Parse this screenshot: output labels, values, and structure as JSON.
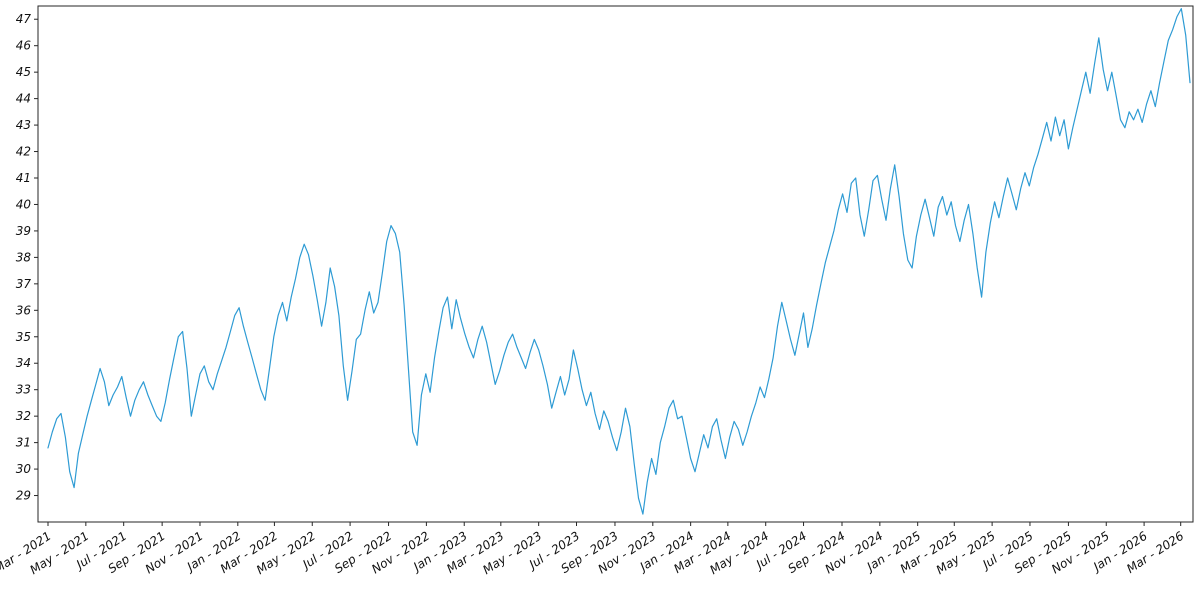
{
  "figure": {
    "background_color": "#ffffff",
    "axis_color": "#262626",
    "label_color": "#111111"
  },
  "chart_data": {
    "type": "line",
    "title": "",
    "legend": "none",
    "grid": false,
    "line_color": "#2e9bd4",
    "ylim": [
      28,
      47.5
    ],
    "yticks": [
      29,
      30,
      31,
      32,
      33,
      34,
      35,
      36,
      37,
      38,
      39,
      40,
      41,
      42,
      43,
      44,
      45,
      46,
      47
    ],
    "xtick_labels": [
      "Mar - 2021",
      "May - 2021",
      "Jul - 2021",
      "Sep - 2021",
      "Nov - 2021",
      "Jan - 2022",
      "Mar - 2022",
      "May - 2022",
      "Jul - 2022",
      "Sep - 2022",
      "Nov - 2022",
      "Jan - 2023",
      "Mar - 2023",
      "May - 2023",
      "Jul - 2023",
      "Sep - 2023",
      "Nov - 2023",
      "Jan - 2024",
      "Mar - 2024",
      "May - 2024",
      "Jul - 2024",
      "Sep - 2024",
      "Nov - 2024",
      "Jan - 2025",
      "Mar - 2025",
      "May - 2025",
      "Jul - 2025",
      "Sep - 2025",
      "Nov - 2025",
      "Jan - 2026",
      "Mar - 2026"
    ],
    "x_start": "2021-03-01",
    "x_step_days": 7,
    "values": [
      30.8,
      31.4,
      31.9,
      32.1,
      31.2,
      29.9,
      29.3,
      30.6,
      31.3,
      32.0,
      32.6,
      33.2,
      33.8,
      33.3,
      32.4,
      32.8,
      33.1,
      33.5,
      32.7,
      32.0,
      32.6,
      33.0,
      33.3,
      32.8,
      32.4,
      32.0,
      31.8,
      32.5,
      33.4,
      34.2,
      35.0,
      35.2,
      33.8,
      32.0,
      32.8,
      33.6,
      33.9,
      33.3,
      33.0,
      33.6,
      34.1,
      34.6,
      35.2,
      35.8,
      36.1,
      35.4,
      34.8,
      34.2,
      33.6,
      33.0,
      32.6,
      33.8,
      35.0,
      35.8,
      36.3,
      35.6,
      36.5,
      37.2,
      38.0,
      38.5,
      38.1,
      37.3,
      36.4,
      35.4,
      36.3,
      37.6,
      36.9,
      35.8,
      33.9,
      32.6,
      33.7,
      34.9,
      35.1,
      36.0,
      36.7,
      35.9,
      36.3,
      37.4,
      38.6,
      39.2,
      38.9,
      38.2,
      36.2,
      33.8,
      31.4,
      30.9,
      32.8,
      33.6,
      32.9,
      34.2,
      35.2,
      36.1,
      36.5,
      35.3,
      36.4,
      35.7,
      35.1,
      34.6,
      34.2,
      34.9,
      35.4,
      34.8,
      34.0,
      33.2,
      33.7,
      34.3,
      34.8,
      35.1,
      34.6,
      34.2,
      33.8,
      34.4,
      34.9,
      34.5,
      33.9,
      33.2,
      32.3,
      32.9,
      33.5,
      32.8,
      33.4,
      34.5,
      33.8,
      33.0,
      32.4,
      32.9,
      32.1,
      31.5,
      32.2,
      31.8,
      31.2,
      30.7,
      31.4,
      32.3,
      31.6,
      30.2,
      28.9,
      28.3,
      29.5,
      30.4,
      29.8,
      31.0,
      31.6,
      32.3,
      32.6,
      31.9,
      32.0,
      31.2,
      30.4,
      29.9,
      30.6,
      31.3,
      30.8,
      31.6,
      31.9,
      31.1,
      30.4,
      31.2,
      31.8,
      31.5,
      30.9,
      31.4,
      32.0,
      32.5,
      33.1,
      32.7,
      33.4,
      34.2,
      35.4,
      36.3,
      35.6,
      34.9,
      34.3,
      35.1,
      35.9,
      34.6,
      35.3,
      36.2,
      37.0,
      37.8,
      38.4,
      39.0,
      39.8,
      40.4,
      39.7,
      40.8,
      41.0,
      39.6,
      38.8,
      39.8,
      40.9,
      41.1,
      40.2,
      39.4,
      40.6,
      41.5,
      40.3,
      38.9,
      37.9,
      37.6,
      38.8,
      39.6,
      40.2,
      39.5,
      38.8,
      39.9,
      40.3,
      39.6,
      40.1,
      39.2,
      38.6,
      39.4,
      40.0,
      38.9,
      37.6,
      36.5,
      38.2,
      39.3,
      40.1,
      39.5,
      40.3,
      41.0,
      40.4,
      39.8,
      40.6,
      41.2,
      40.7,
      41.4,
      41.9,
      42.5,
      43.1,
      42.4,
      43.3,
      42.6,
      43.2,
      42.1,
      42.9,
      43.6,
      44.3,
      45.0,
      44.2,
      45.3,
      46.3,
      45.1,
      44.3,
      45.0,
      44.1,
      43.2,
      42.9,
      43.5,
      43.2,
      43.6,
      43.1,
      43.8,
      44.3,
      43.7,
      44.6,
      45.4,
      46.2,
      46.6,
      47.1,
      47.4,
      46.4,
      44.6
    ]
  }
}
